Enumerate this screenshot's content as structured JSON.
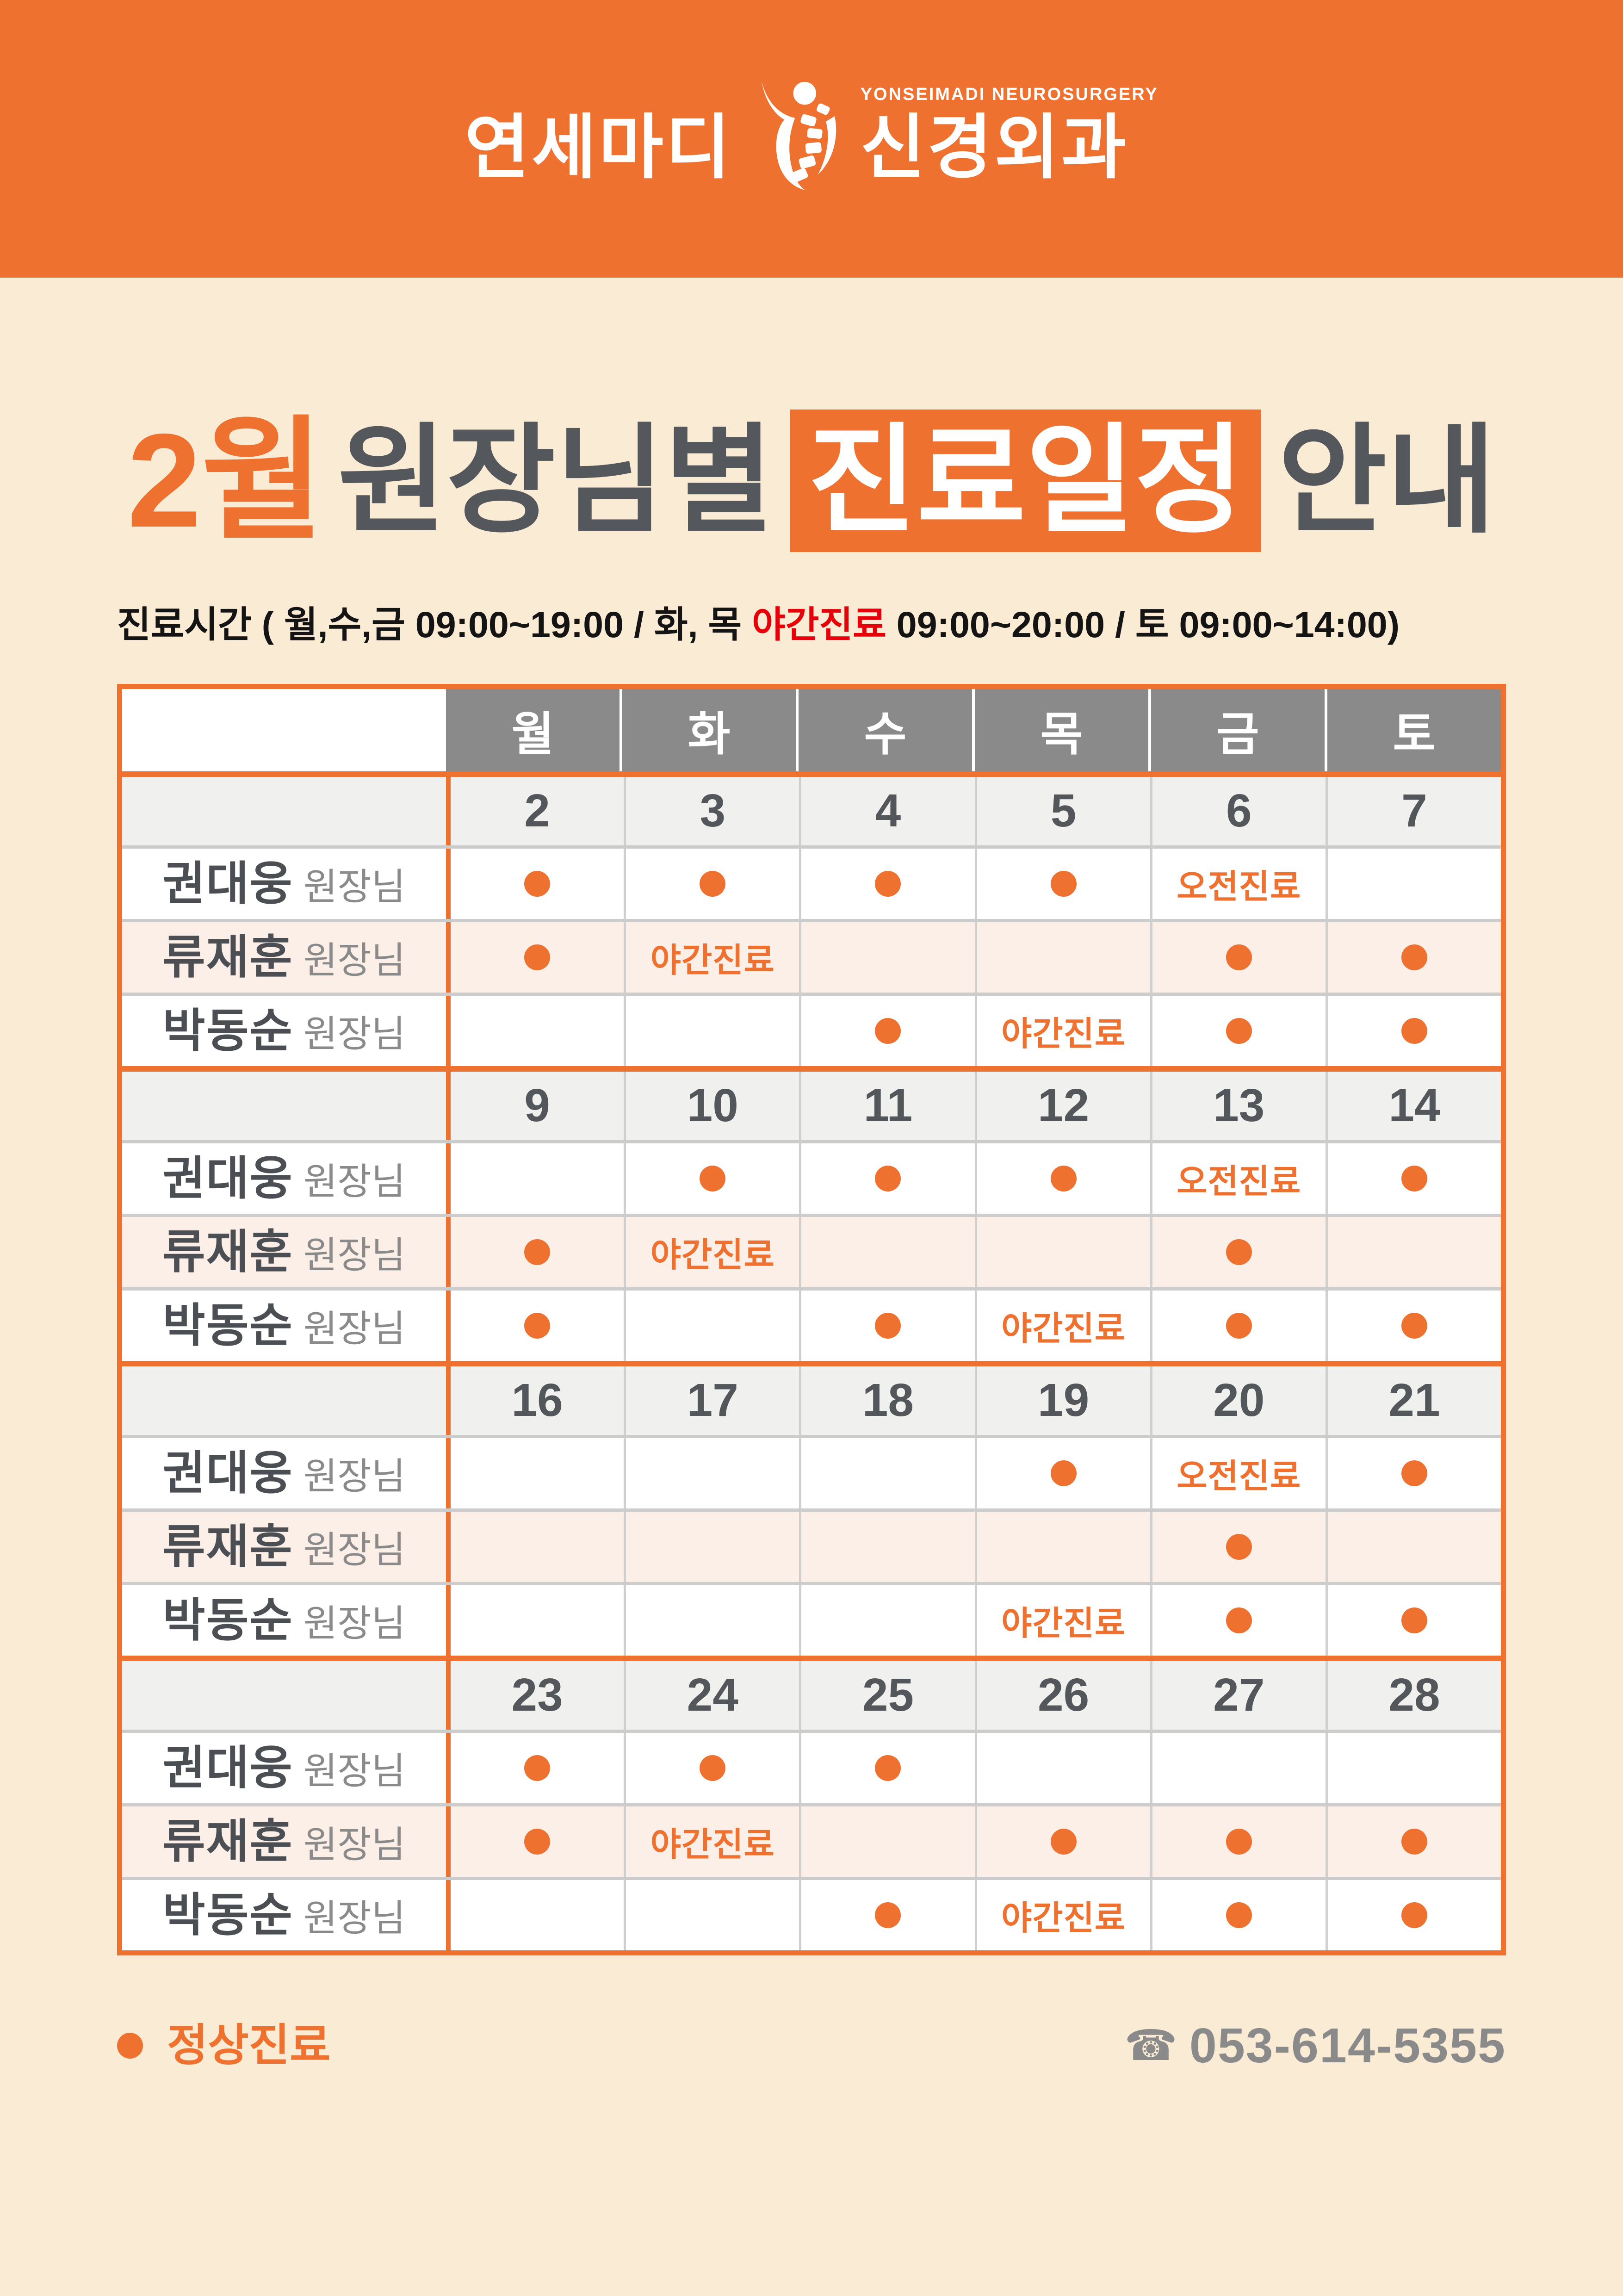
{
  "header": {
    "brand_left": "연세마디",
    "brand_right": "신경외과",
    "brand_sub": "YONSEIMADI NEUROSURGERY"
  },
  "title": {
    "month": "2월",
    "part1": "원장님별",
    "highlight": "진료일정",
    "part2": "안내"
  },
  "hours": {
    "prefix": "진료시간 ( 월,수,금  09:00~19:00 / 화, 목 ",
    "night": "야간진료",
    "suffix": "  09:00~20:00 / 토  09:00~14:00)"
  },
  "table": {
    "days": [
      "월",
      "화",
      "수",
      "목",
      "금",
      "토"
    ],
    "doctor_suffix": "원장님",
    "weeks": [
      {
        "dates": [
          "2",
          "3",
          "4",
          "5",
          "6",
          "7"
        ],
        "rows": [
          {
            "doctor": "권대웅",
            "cells": [
              "dot",
              "dot",
              "dot",
              "dot",
              "오전진료",
              ""
            ]
          },
          {
            "doctor": "류재훈",
            "cells": [
              "dot",
              "야간진료",
              "",
              "",
              "dot",
              "dot"
            ]
          },
          {
            "doctor": "박동순",
            "cells": [
              "",
              "",
              "dot",
              "야간진료",
              "dot",
              "dot"
            ]
          }
        ]
      },
      {
        "dates": [
          "9",
          "10",
          "11",
          "12",
          "13",
          "14"
        ],
        "rows": [
          {
            "doctor": "권대웅",
            "cells": [
              "",
              "dot",
              "dot",
              "dot",
              "오전진료",
              "dot"
            ]
          },
          {
            "doctor": "류재훈",
            "cells": [
              "dot",
              "야간진료",
              "",
              "",
              "dot",
              ""
            ]
          },
          {
            "doctor": "박동순",
            "cells": [
              "dot",
              "",
              "dot",
              "야간진료",
              "dot",
              "dot"
            ]
          }
        ]
      },
      {
        "dates": [
          "16",
          "17",
          "18",
          "19",
          "20",
          "21"
        ],
        "rows": [
          {
            "doctor": "권대웅",
            "cells": [
              "",
              "",
              "",
              "dot",
              "오전진료",
              "dot"
            ]
          },
          {
            "doctor": "류재훈",
            "cells": [
              "",
              "",
              "",
              "",
              "dot",
              ""
            ]
          },
          {
            "doctor": "박동순",
            "cells": [
              "",
              "",
              "",
              "야간진료",
              "dot",
              "dot"
            ]
          }
        ]
      },
      {
        "dates": [
          "23",
          "24",
          "25",
          "26",
          "27",
          "28"
        ],
        "rows": [
          {
            "doctor": "권대웅",
            "cells": [
              "dot",
              "dot",
              "dot",
              "",
              "",
              ""
            ]
          },
          {
            "doctor": "류재훈",
            "cells": [
              "dot",
              "야간진료",
              "",
              "dot",
              "dot",
              "dot"
            ]
          },
          {
            "doctor": "박동순",
            "cells": [
              "",
              "",
              "dot",
              "야간진료",
              "dot",
              "dot"
            ]
          }
        ]
      }
    ]
  },
  "footer": {
    "legend_label": "정상진료",
    "phone_icon": "☎",
    "phone_number": "053-614-5355"
  },
  "colors": {
    "orange": "#EE7130",
    "cream": "#FAEBD5",
    "header_gray": "#8A8A8A",
    "pink_row": "#FCEFE8",
    "night_red": "#E60009",
    "text_gray": "#54575B"
  }
}
